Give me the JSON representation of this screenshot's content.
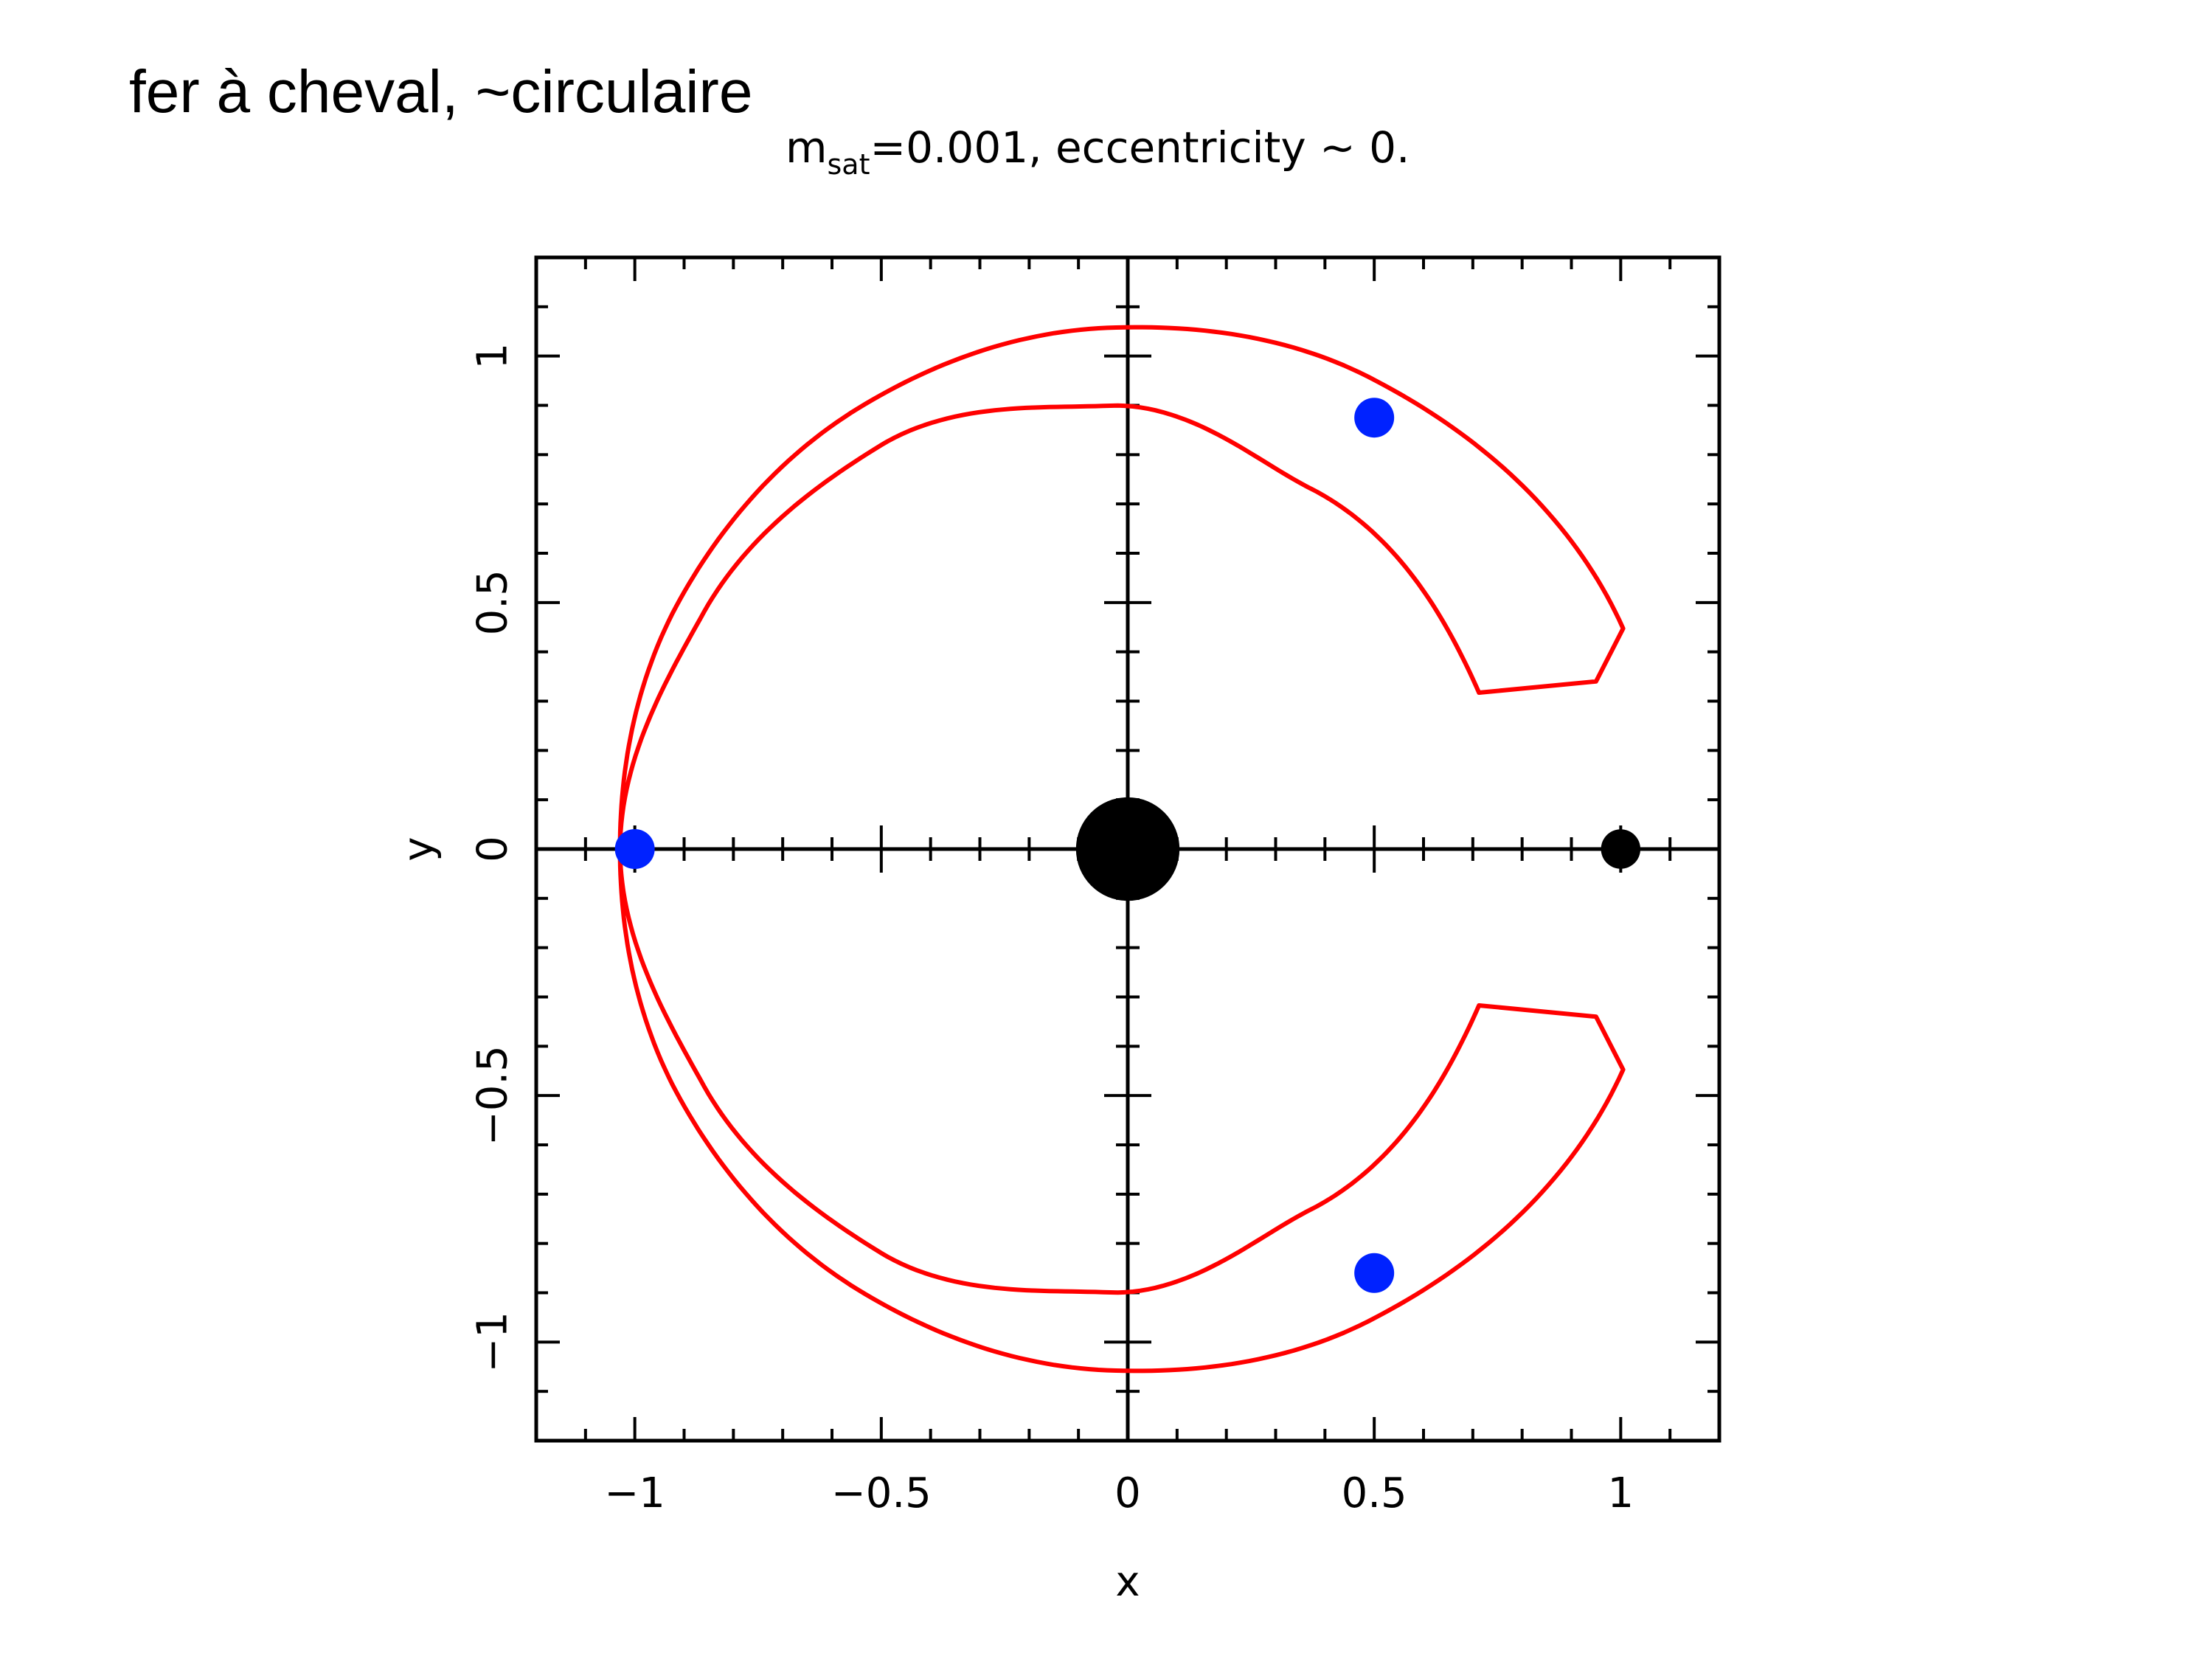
{
  "slide": {
    "caption": "fer à cheval, ~circulaire"
  },
  "chart_data": {
    "type": "line",
    "title": {
      "prefix": "m",
      "subscript": "sat",
      "suffix": "=0.001, eccentricity ~ 0."
    },
    "xlabel": "x",
    "ylabel": "y",
    "xlim": [
      -1.2,
      1.2
    ],
    "ylim": [
      -1.2,
      1.2
    ],
    "x_ticks": [
      {
        "value": -1,
        "label": "−1"
      },
      {
        "value": -0.5,
        "label": "−0.5"
      },
      {
        "value": 0,
        "label": "0"
      },
      {
        "value": 0.5,
        "label": "0.5"
      },
      {
        "value": 1,
        "label": "1"
      }
    ],
    "y_ticks": [
      {
        "value": -1,
        "label": "−1"
      },
      {
        "value": -0.5,
        "label": "−0.5"
      },
      {
        "value": 0,
        "label": "0"
      },
      {
        "value": 0.5,
        "label": "0.5"
      },
      {
        "value": 1,
        "label": "1"
      }
    ],
    "minor_tick_step": 0.1,
    "axes_through_origin": true,
    "orbit_color": "#ff0000",
    "orbit": {
      "outer_radius_at_x_0": 1.06,
      "inner_radius_at_x_0": 0.94,
      "tip": [
        0.95,
        0.34
      ],
      "outer_top": [
        [
          1.1,
          100
        ],
        [
          1.075,
          120
        ],
        [
          1.058,
          135
        ],
        [
          1.048,
          150
        ],
        [
          1.04,
          165
        ],
        [
          1.03,
          180
        ]
      ],
      "inner_top": [
        [
          0.78,
          100
        ],
        [
          0.82,
          120
        ],
        [
          0.9,
          135
        ],
        [
          0.96,
          150
        ],
        [
          0.985,
          165
        ],
        [
          1.03,
          180
        ]
      ],
      "top_gap": [
        [
          0.935,
          0.945
        ],
        [
          0.975,
          0.935
        ]
      ]
    },
    "bodies": [
      {
        "name": "central",
        "x": 0,
        "y": 0,
        "r": 0.105,
        "color": "#000000"
      },
      {
        "name": "satellite",
        "x": 1.0,
        "y": 0,
        "r": 0.04,
        "color": "#000000"
      }
    ],
    "markers": [
      {
        "x": 0.5,
        "y": 0.875,
        "color": "#0022ff"
      },
      {
        "x": -1.0,
        "y": 0.0,
        "color": "#0022ff"
      },
      {
        "x": 0.5,
        "y": -0.86,
        "color": "#0022ff"
      }
    ]
  }
}
